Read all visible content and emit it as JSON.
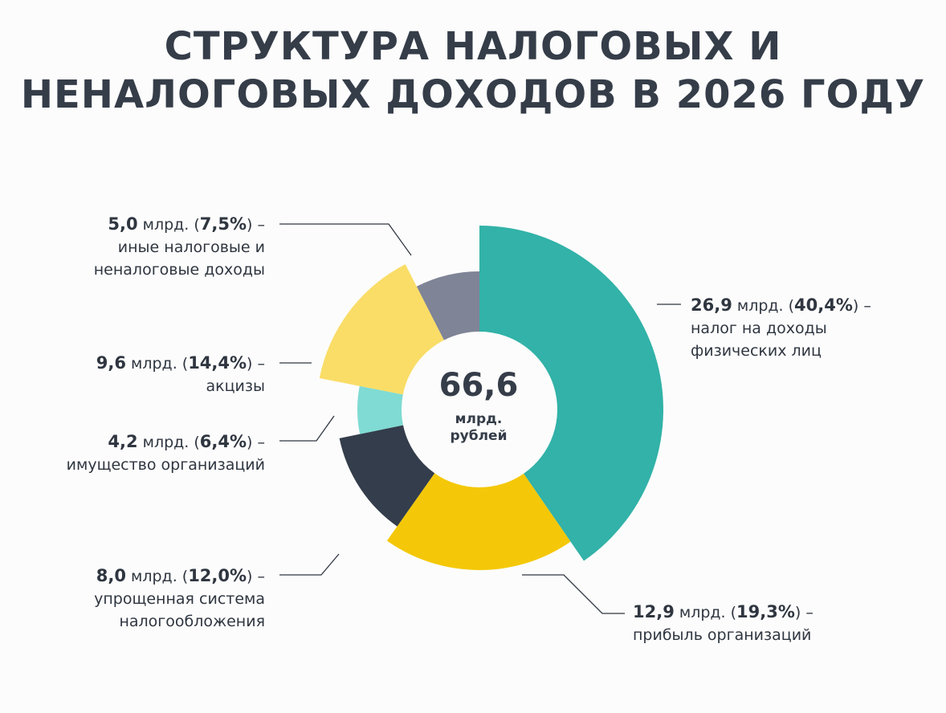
{
  "title": {
    "line1": "СТРУКТУРА НАЛОГОВЫХ И",
    "line2": "НЕНАЛОГОВЫХ ДОХОДОВ В 2026 ГОДУ"
  },
  "center": {
    "value": "66,6",
    "unit_line1": "млрд.",
    "unit_line2": "рублей"
  },
  "chart_data": {
    "type": "pie",
    "title": "СТРУКТУРА НАЛОГОВЫХ И НЕНАЛОГОВЫХ ДОХОДОВ В 2026 ГОДУ",
    "total": 66.6,
    "unit": "млрд. рублей",
    "slices": [
      {
        "key": "ndfl",
        "value": 26.9,
        "value_text": "26,9",
        "percent": 40.4,
        "percent_text": "40,4%",
        "name_lines": [
          "налог на доходы",
          "физических лиц"
        ],
        "color": "#32b2a8"
      },
      {
        "key": "profit",
        "value": 12.9,
        "value_text": "12,9",
        "percent": 19.3,
        "percent_text": "19,3%",
        "name_lines": [
          "прибыль организаций"
        ],
        "color": "#f4c808"
      },
      {
        "key": "usn",
        "value": 8.0,
        "value_text": "8,0",
        "percent": 12.0,
        "percent_text": "12,0%",
        "name_lines": [
          "упрощенная система",
          "налогообложения"
        ],
        "color": "#333d4b"
      },
      {
        "key": "property",
        "value": 4.2,
        "value_text": "4,2",
        "percent": 6.4,
        "percent_text": "6,4%",
        "name_lines": [
          "имущество организаций"
        ],
        "color": "#7fdbd3"
      },
      {
        "key": "excise",
        "value": 9.6,
        "value_text": "9,6",
        "percent": 14.4,
        "percent_text": "14,4%",
        "name_lines": [
          "акцизы"
        ],
        "color": "#fadd67"
      },
      {
        "key": "other",
        "value": 5.0,
        "value_text": "5,0",
        "percent": 7.5,
        "percent_text": "7,5%",
        "name_lines": [
          "иные налоговые и",
          "неналоговые доходы"
        ],
        "color": "#7f8496"
      }
    ],
    "label_unit": "млрд.",
    "connector_color": "#2f3640"
  }
}
